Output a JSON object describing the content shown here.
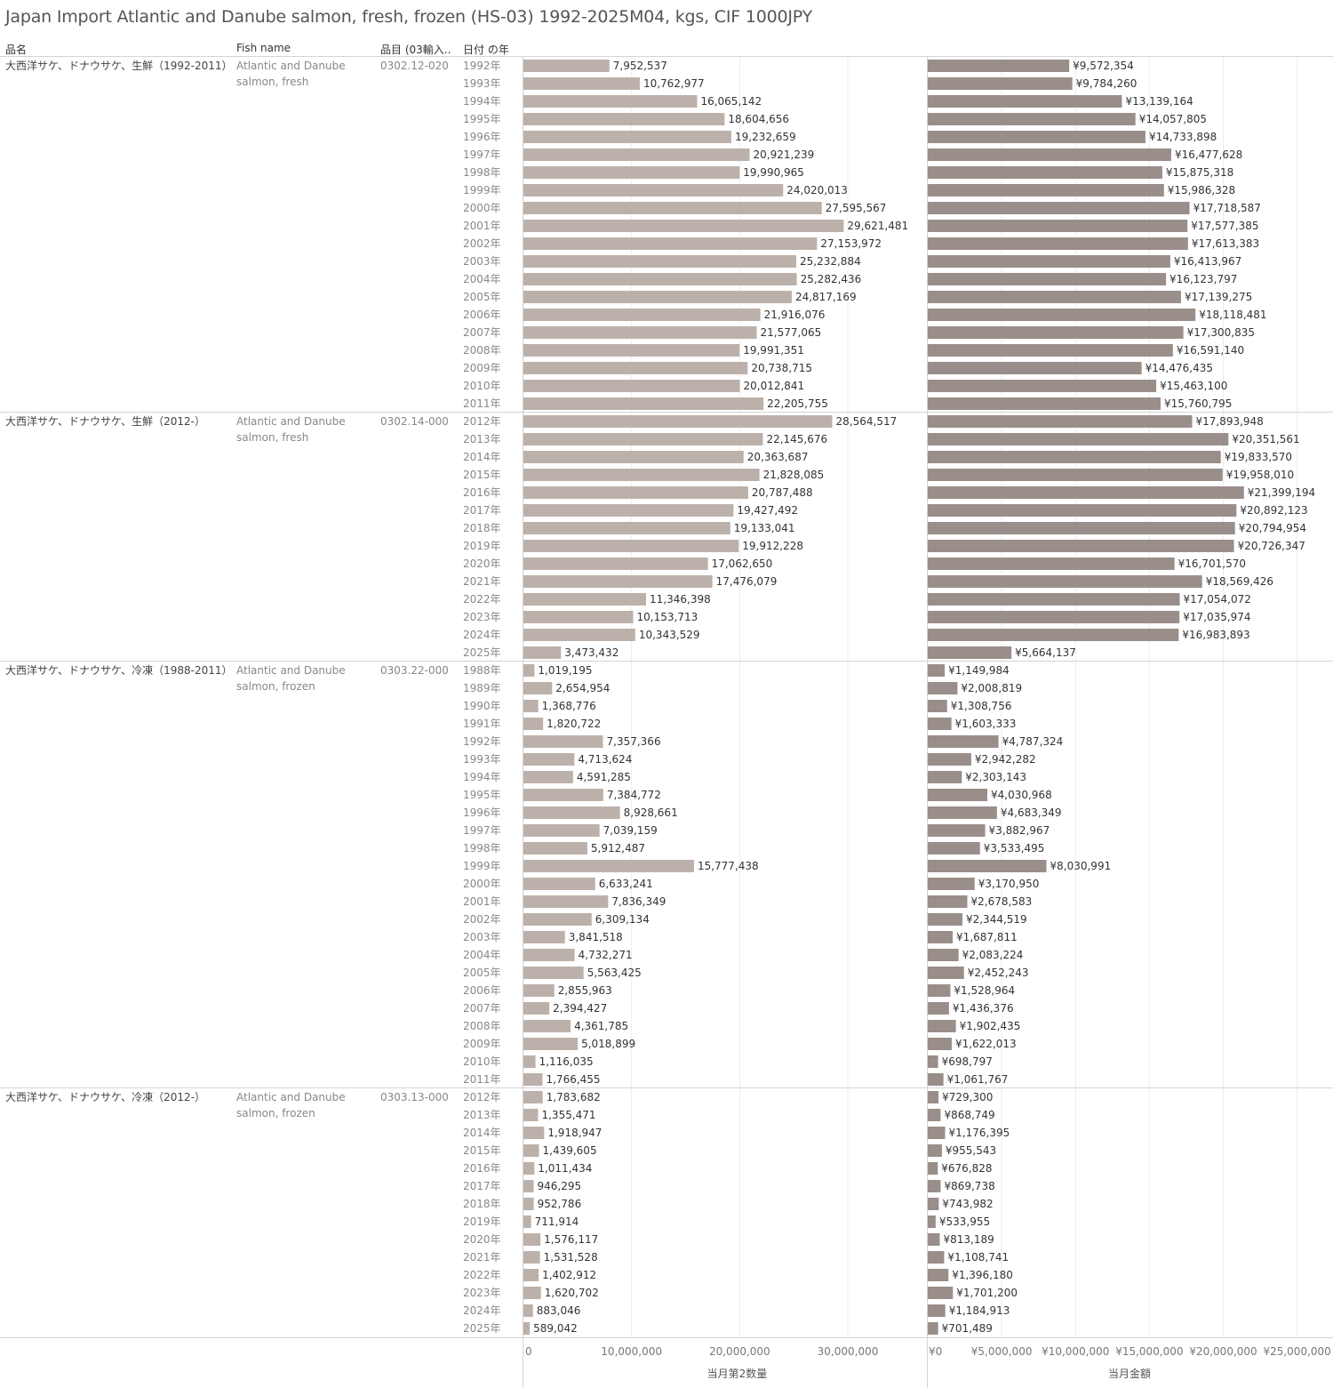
{
  "title": "Japan Import Atlantic and Danube salmon, fresh, frozen (HS-03) 1992-2025M04, kgs, CIF 1000JPY",
  "columns": {
    "name_jp": "品名",
    "name_en": "Fish name",
    "hs_code": "品目 (03輸入..",
    "year": "日付 の年"
  },
  "colors": {
    "qty_bar": "#bcb1aa",
    "amt_bar": "#9a8e8a",
    "grid": "#ececec",
    "divider": "#d4d4d4"
  },
  "chart_data": {
    "type": "bar",
    "orientation": "horizontal",
    "groups": [
      {
        "name_jp": "大西洋サケ、ドナウサケ、生鮮（1992-2011）",
        "name_en": [
          "Atlantic and Danube",
          "salmon, fresh"
        ],
        "hs_code": "0302.12-020",
        "rows": [
          {
            "year": "1992年",
            "qty": 7952537,
            "qty_label": "7,952,537",
            "amt": 9572354,
            "amt_label": "¥9,572,354"
          },
          {
            "year": "1993年",
            "qty": 10762977,
            "qty_label": "10,762,977",
            "amt": 9784260,
            "amt_label": "¥9,784,260"
          },
          {
            "year": "1994年",
            "qty": 16065142,
            "qty_label": "16,065,142",
            "amt": 13139164,
            "amt_label": "¥13,139,164"
          },
          {
            "year": "1995年",
            "qty": 18604656,
            "qty_label": "18,604,656",
            "amt": 14057805,
            "amt_label": "¥14,057,805"
          },
          {
            "year": "1996年",
            "qty": 19232659,
            "qty_label": "19,232,659",
            "amt": 14733898,
            "amt_label": "¥14,733,898"
          },
          {
            "year": "1997年",
            "qty": 20921239,
            "qty_label": "20,921,239",
            "amt": 16477628,
            "amt_label": "¥16,477,628"
          },
          {
            "year": "1998年",
            "qty": 19990965,
            "qty_label": "19,990,965",
            "amt": 15875318,
            "amt_label": "¥15,875,318"
          },
          {
            "year": "1999年",
            "qty": 24020013,
            "qty_label": "24,020,013",
            "amt": 15986328,
            "amt_label": "¥15,986,328"
          },
          {
            "year": "2000年",
            "qty": 27595567,
            "qty_label": "27,595,567",
            "amt": 17718587,
            "amt_label": "¥17,718,587"
          },
          {
            "year": "2001年",
            "qty": 29621481,
            "qty_label": "29,621,481",
            "amt": 17577385,
            "amt_label": "¥17,577,385"
          },
          {
            "year": "2002年",
            "qty": 27153972,
            "qty_label": "27,153,972",
            "amt": 17613383,
            "amt_label": "¥17,613,383"
          },
          {
            "year": "2003年",
            "qty": 25232884,
            "qty_label": "25,232,884",
            "amt": 16413967,
            "amt_label": "¥16,413,967"
          },
          {
            "year": "2004年",
            "qty": 25282436,
            "qty_label": "25,282,436",
            "amt": 16123797,
            "amt_label": "¥16,123,797"
          },
          {
            "year": "2005年",
            "qty": 24817169,
            "qty_label": "24,817,169",
            "amt": 17139275,
            "amt_label": "¥17,139,275"
          },
          {
            "year": "2006年",
            "qty": 21916076,
            "qty_label": "21,916,076",
            "amt": 18118481,
            "amt_label": "¥18,118,481"
          },
          {
            "year": "2007年",
            "qty": 21577065,
            "qty_label": "21,577,065",
            "amt": 17300835,
            "amt_label": "¥17,300,835"
          },
          {
            "year": "2008年",
            "qty": 19991351,
            "qty_label": "19,991,351",
            "amt": 16591140,
            "amt_label": "¥16,591,140"
          },
          {
            "year": "2009年",
            "qty": 20738715,
            "qty_label": "20,738,715",
            "amt": 14476435,
            "amt_label": "¥14,476,435"
          },
          {
            "year": "2010年",
            "qty": 20012841,
            "qty_label": "20,012,841",
            "amt": 15463100,
            "amt_label": "¥15,463,100"
          },
          {
            "year": "2011年",
            "qty": 22205755,
            "qty_label": "22,205,755",
            "amt": 15760795,
            "amt_label": "¥15,760,795"
          }
        ]
      },
      {
        "name_jp": "大西洋サケ、ドナウサケ、生鮮（2012-）",
        "name_en": [
          "Atlantic and Danube",
          "salmon, fresh"
        ],
        "hs_code": "0302.14-000",
        "rows": [
          {
            "year": "2012年",
            "qty": 28564517,
            "qty_label": "28,564,517",
            "amt": 17893948,
            "amt_label": "¥17,893,948"
          },
          {
            "year": "2013年",
            "qty": 22145676,
            "qty_label": "22,145,676",
            "amt": 20351561,
            "amt_label": "¥20,351,561"
          },
          {
            "year": "2014年",
            "qty": 20363687,
            "qty_label": "20,363,687",
            "amt": 19833570,
            "amt_label": "¥19,833,570"
          },
          {
            "year": "2015年",
            "qty": 21828085,
            "qty_label": "21,828,085",
            "amt": 19958010,
            "amt_label": "¥19,958,010"
          },
          {
            "year": "2016年",
            "qty": 20787488,
            "qty_label": "20,787,488",
            "amt": 21399194,
            "amt_label": "¥21,399,194"
          },
          {
            "year": "2017年",
            "qty": 19427492,
            "qty_label": "19,427,492",
            "amt": 20892123,
            "amt_label": "¥20,892,123"
          },
          {
            "year": "2018年",
            "qty": 19133041,
            "qty_label": "19,133,041",
            "amt": 20794954,
            "amt_label": "¥20,794,954"
          },
          {
            "year": "2019年",
            "qty": 19912228,
            "qty_label": "19,912,228",
            "amt": 20726347,
            "amt_label": "¥20,726,347"
          },
          {
            "year": "2020年",
            "qty": 17062650,
            "qty_label": "17,062,650",
            "amt": 16701570,
            "amt_label": "¥16,701,570"
          },
          {
            "year": "2021年",
            "qty": 17476079,
            "qty_label": "17,476,079",
            "amt": 18569426,
            "amt_label": "¥18,569,426"
          },
          {
            "year": "2022年",
            "qty": 11346398,
            "qty_label": "11,346,398",
            "amt": 17054072,
            "amt_label": "¥17,054,072"
          },
          {
            "year": "2023年",
            "qty": 10153713,
            "qty_label": "10,153,713",
            "amt": 17035974,
            "amt_label": "¥17,035,974"
          },
          {
            "year": "2024年",
            "qty": 10343529,
            "qty_label": "10,343,529",
            "amt": 16983893,
            "amt_label": "¥16,983,893"
          },
          {
            "year": "2025年",
            "qty": 3473432,
            "qty_label": "3,473,432",
            "amt": 5664137,
            "amt_label": "¥5,664,137"
          }
        ]
      },
      {
        "name_jp": "大西洋サケ、ドナウサケ、冷凍（1988-2011）",
        "name_en": [
          "Atlantic and Danube",
          "salmon, frozen"
        ],
        "hs_code": "0303.22-000",
        "rows": [
          {
            "year": "1988年",
            "qty": 1019195,
            "qty_label": "1,019,195",
            "amt": 1149984,
            "amt_label": "¥1,149,984"
          },
          {
            "year": "1989年",
            "qty": 2654954,
            "qty_label": "2,654,954",
            "amt": 2008819,
            "amt_label": "¥2,008,819"
          },
          {
            "year": "1990年",
            "qty": 1368776,
            "qty_label": "1,368,776",
            "amt": 1308756,
            "amt_label": "¥1,308,756"
          },
          {
            "year": "1991年",
            "qty": 1820722,
            "qty_label": "1,820,722",
            "amt": 1603333,
            "amt_label": "¥1,603,333"
          },
          {
            "year": "1992年",
            "qty": 7357366,
            "qty_label": "7,357,366",
            "amt": 4787324,
            "amt_label": "¥4,787,324"
          },
          {
            "year": "1993年",
            "qty": 4713624,
            "qty_label": "4,713,624",
            "amt": 2942282,
            "amt_label": "¥2,942,282"
          },
          {
            "year": "1994年",
            "qty": 4591285,
            "qty_label": "4,591,285",
            "amt": 2303143,
            "amt_label": "¥2,303,143"
          },
          {
            "year": "1995年",
            "qty": 7384772,
            "qty_label": "7,384,772",
            "amt": 4030968,
            "amt_label": "¥4,030,968"
          },
          {
            "year": "1996年",
            "qty": 8928661,
            "qty_label": "8,928,661",
            "amt": 4683349,
            "amt_label": "¥4,683,349"
          },
          {
            "year": "1997年",
            "qty": 7039159,
            "qty_label": "7,039,159",
            "amt": 3882967,
            "amt_label": "¥3,882,967"
          },
          {
            "year": "1998年",
            "qty": 5912487,
            "qty_label": "5,912,487",
            "amt": 3533495,
            "amt_label": "¥3,533,495"
          },
          {
            "year": "1999年",
            "qty": 15777438,
            "qty_label": "15,777,438",
            "amt": 8030991,
            "amt_label": "¥8,030,991"
          },
          {
            "year": "2000年",
            "qty": 6633241,
            "qty_label": "6,633,241",
            "amt": 3170950,
            "amt_label": "¥3,170,950"
          },
          {
            "year": "2001年",
            "qty": 7836349,
            "qty_label": "7,836,349",
            "amt": 2678583,
            "amt_label": "¥2,678,583"
          },
          {
            "year": "2002年",
            "qty": 6309134,
            "qty_label": "6,309,134",
            "amt": 2344519,
            "amt_label": "¥2,344,519"
          },
          {
            "year": "2003年",
            "qty": 3841518,
            "qty_label": "3,841,518",
            "amt": 1687811,
            "amt_label": "¥1,687,811"
          },
          {
            "year": "2004年",
            "qty": 4732271,
            "qty_label": "4,732,271",
            "amt": 2083224,
            "amt_label": "¥2,083,224"
          },
          {
            "year": "2005年",
            "qty": 5563425,
            "qty_label": "5,563,425",
            "amt": 2452243,
            "amt_label": "¥2,452,243"
          },
          {
            "year": "2006年",
            "qty": 2855963,
            "qty_label": "2,855,963",
            "amt": 1528964,
            "amt_label": "¥1,528,964"
          },
          {
            "year": "2007年",
            "qty": 2394427,
            "qty_label": "2,394,427",
            "amt": 1436376,
            "amt_label": "¥1,436,376"
          },
          {
            "year": "2008年",
            "qty": 4361785,
            "qty_label": "4,361,785",
            "amt": 1902435,
            "amt_label": "¥1,902,435"
          },
          {
            "year": "2009年",
            "qty": 5018899,
            "qty_label": "5,018,899",
            "amt": 1622013,
            "amt_label": "¥1,622,013"
          },
          {
            "year": "2010年",
            "qty": 1116035,
            "qty_label": "1,116,035",
            "amt": 698797,
            "amt_label": "¥698,797"
          },
          {
            "year": "2011年",
            "qty": 1766455,
            "qty_label": "1,766,455",
            "amt": 1061767,
            "amt_label": "¥1,061,767"
          }
        ]
      },
      {
        "name_jp": "大西洋サケ、ドナウサケ、冷凍（2012-）",
        "name_en": [
          "Atlantic and Danube",
          "salmon, frozen"
        ],
        "hs_code": "0303.13-000",
        "rows": [
          {
            "year": "2012年",
            "qty": 1783682,
            "qty_label": "1,783,682",
            "amt": 729300,
            "amt_label": "¥729,300"
          },
          {
            "year": "2013年",
            "qty": 1355471,
            "qty_label": "1,355,471",
            "amt": 868749,
            "amt_label": "¥868,749"
          },
          {
            "year": "2014年",
            "qty": 1918947,
            "qty_label": "1,918,947",
            "amt": 1176395,
            "amt_label": "¥1,176,395"
          },
          {
            "year": "2015年",
            "qty": 1439605,
            "qty_label": "1,439,605",
            "amt": 955543,
            "amt_label": "¥955,543"
          },
          {
            "year": "2016年",
            "qty": 1011434,
            "qty_label": "1,011,434",
            "amt": 676828,
            "amt_label": "¥676,828"
          },
          {
            "year": "2017年",
            "qty": 946295,
            "qty_label": "946,295",
            "amt": 869738,
            "amt_label": "¥869,738"
          },
          {
            "year": "2018年",
            "qty": 952786,
            "qty_label": "952,786",
            "amt": 743982,
            "amt_label": "¥743,982"
          },
          {
            "year": "2019年",
            "qty": 711914,
            "qty_label": "711,914",
            "amt": 533955,
            "amt_label": "¥533,955"
          },
          {
            "year": "2020年",
            "qty": 1576117,
            "qty_label": "1,576,117",
            "amt": 813189,
            "amt_label": "¥813,189"
          },
          {
            "year": "2021年",
            "qty": 1531528,
            "qty_label": "1,531,528",
            "amt": 1108741,
            "amt_label": "¥1,108,741"
          },
          {
            "year": "2022年",
            "qty": 1402912,
            "qty_label": "1,402,912",
            "amt": 1396180,
            "amt_label": "¥1,396,180"
          },
          {
            "year": "2023年",
            "qty": 1620702,
            "qty_label": "1,620,702",
            "amt": 1701200,
            "amt_label": "¥1,701,200"
          },
          {
            "year": "2024年",
            "qty": 883046,
            "qty_label": "883,046",
            "amt": 1184913,
            "amt_label": "¥1,184,913"
          },
          {
            "year": "2025年",
            "qty": 589042,
            "qty_label": "589,042",
            "amt": 701489,
            "amt_label": "¥701,489"
          }
        ]
      }
    ],
    "qty_axis": {
      "label": "当月第2数量",
      "range": [
        0,
        37000000
      ],
      "ticks": [
        0,
        10000000,
        20000000,
        30000000
      ],
      "tick_labels": [
        "0",
        "10,000,000",
        "20,000,000",
        "30,000,000"
      ]
    },
    "amt_axis": {
      "label": "当月金額",
      "range": [
        0,
        27400000
      ],
      "ticks": [
        0,
        5000000,
        10000000,
        15000000,
        20000000,
        25000000
      ],
      "tick_labels": [
        "¥0",
        "¥5,000,000",
        "¥10,000,000",
        "¥15,000,000",
        "¥20,000,000",
        "¥25,000,000"
      ]
    },
    "grid": true
  }
}
